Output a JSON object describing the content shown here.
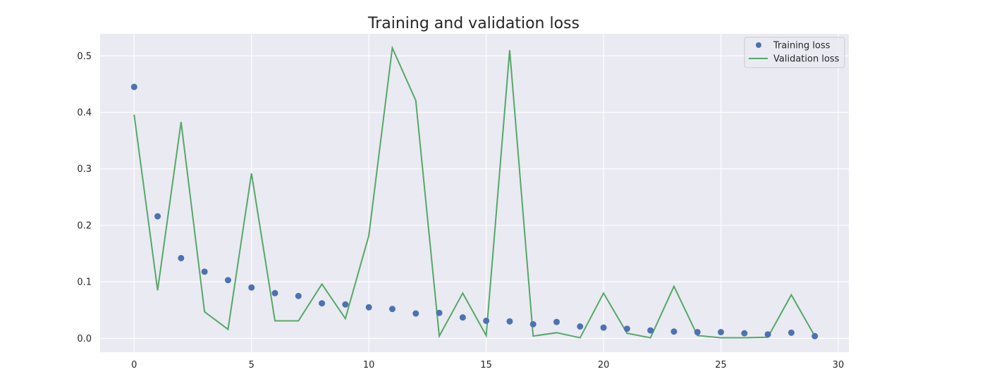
{
  "chart_data": {
    "type": "line",
    "title": "Training and validation loss",
    "xlabel": "",
    "ylabel": "",
    "xlim": [
      -1.45,
      30.45
    ],
    "ylim": [
      -0.0245,
      0.539
    ],
    "xticks": [
      0,
      5,
      10,
      15,
      20,
      25,
      30
    ],
    "yticks": [
      0.0,
      0.1,
      0.2,
      0.3,
      0.4,
      0.5
    ],
    "ytick_labels": [
      "0.0",
      "0.1",
      "0.2",
      "0.3",
      "0.4",
      "0.5"
    ],
    "grid": true,
    "legend_position": "upper right",
    "x": [
      0,
      1,
      2,
      3,
      4,
      5,
      6,
      7,
      8,
      9,
      10,
      11,
      12,
      13,
      14,
      15,
      16,
      17,
      18,
      19,
      20,
      21,
      22,
      23,
      24,
      25,
      26,
      27,
      28,
      29
    ],
    "series": [
      {
        "name": "Training loss",
        "style": "markers",
        "color": "#4c72b0",
        "values": [
          0.445,
          0.216,
          0.142,
          0.118,
          0.103,
          0.09,
          0.08,
          0.075,
          0.062,
          0.06,
          0.055,
          0.052,
          0.044,
          0.045,
          0.037,
          0.031,
          0.03,
          0.025,
          0.029,
          0.021,
          0.019,
          0.017,
          0.014,
          0.012,
          0.011,
          0.011,
          0.009,
          0.007,
          0.01,
          0.004
        ]
      },
      {
        "name": "Validation loss",
        "style": "line",
        "color": "#55a868",
        "values": [
          0.396,
          0.085,
          0.383,
          0.047,
          0.016,
          0.292,
          0.031,
          0.031,
          0.096,
          0.035,
          0.182,
          0.514,
          0.421,
          0.004,
          0.08,
          0.005,
          0.51,
          0.004,
          0.01,
          0.001,
          0.08,
          0.009,
          0.001,
          0.092,
          0.005,
          0.001,
          0.001,
          0.002,
          0.077,
          0.004
        ]
      }
    ]
  },
  "colors": {
    "plot_background": "#eaeaf2",
    "grid": "#ffffff",
    "text": "#262626"
  }
}
